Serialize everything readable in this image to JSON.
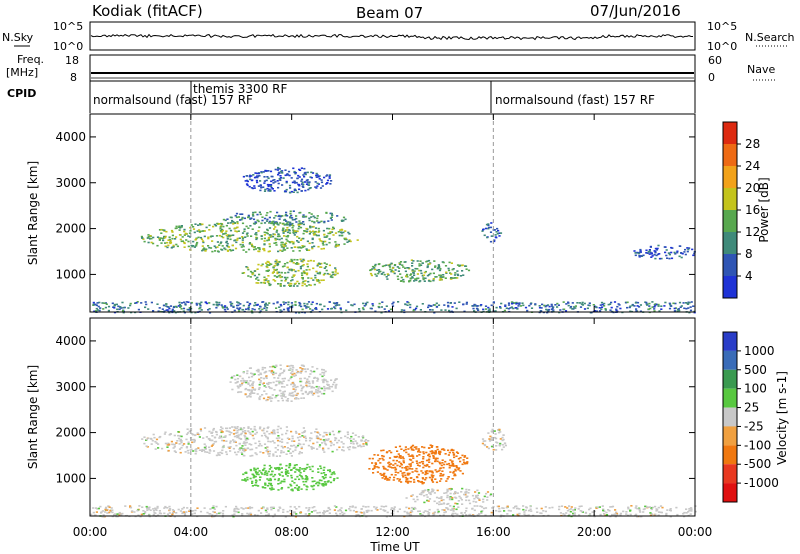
{
  "header": {
    "site": "Kodiak (fitACF)",
    "beam": "Beam 07",
    "date": "07/Jun/2016"
  },
  "status_panels": {
    "nsky_label": "N.Sky",
    "nsearch_label": "N.Search",
    "noise_ticks_left": [
      "10^5",
      "10^0"
    ],
    "noise_ticks_right": [
      "10^5",
      "10^0"
    ],
    "freq_label": "Freq.",
    "freq_unit": "[MHz]",
    "freq_ticks": [
      "18",
      "8"
    ],
    "nave_label": "Nave",
    "nave_ticks": [
      "60",
      "0"
    ],
    "cpid_label": "CPID"
  },
  "cpid_segments": [
    {
      "label": "normalsound (fast) 157 RF",
      "start_hour": 0,
      "end_hour": 4
    },
    {
      "label": "themis 3300 RF",
      "start_hour": 4,
      "end_hour": 16
    },
    {
      "label": "normalsound (fast) 157 RF",
      "start_hour": 16,
      "end_hour": 24
    }
  ],
  "chart_data": [
    {
      "type": "heatmap",
      "name": "power",
      "ylabel": "Slant Range [km]",
      "xlabel": "Time UT",
      "x_range_hours": [
        0,
        24
      ],
      "x_tick_labels": [
        "00:00",
        "04:00",
        "08:00",
        "12:00",
        "16:00",
        "20:00",
        "00:00"
      ],
      "ylim": [
        180,
        4500
      ],
      "y_ticks": [
        1000,
        2000,
        3000,
        4000
      ],
      "colorbar": {
        "label": "Power [dB]",
        "range": [
          0,
          32
        ],
        "ticks": [
          "4",
          "8",
          "12",
          "16",
          "20",
          "24",
          "28"
        ],
        "colors": [
          "#1f33d6",
          "#2f55b4",
          "#3f8a7a",
          "#58a84f",
          "#c4c41c",
          "#f2a21a",
          "#ee6a14",
          "#dd2a10"
        ]
      },
      "echo_regions": [
        {
          "t0": 2.0,
          "t1": 10.6,
          "r0": 1500,
          "r1": 2150,
          "level": 14
        },
        {
          "t0": 5.2,
          "t1": 10.2,
          "r0": 2100,
          "r1": 2400,
          "level": 10
        },
        {
          "t0": 6.0,
          "t1": 9.8,
          "r0": 750,
          "r1": 1350,
          "level": 15
        },
        {
          "t0": 6.0,
          "t1": 9.6,
          "r0": 2800,
          "r1": 3350,
          "level": 5
        },
        {
          "t0": 11.0,
          "t1": 15.0,
          "r0": 850,
          "r1": 1350,
          "level": 13
        },
        {
          "t0": 15.5,
          "t1": 16.3,
          "r0": 1700,
          "r1": 2150,
          "level": 6
        },
        {
          "t0": 21.5,
          "t1": 24.0,
          "r0": 1350,
          "r1": 1650,
          "level": 5
        },
        {
          "t0": 0.0,
          "t1": 24.0,
          "r0": 180,
          "r1": 420,
          "level": 8
        }
      ]
    },
    {
      "type": "heatmap",
      "name": "velocity",
      "ylabel": "Slant Range [km]",
      "xlabel": "Time UT",
      "x_range_hours": [
        0,
        24
      ],
      "x_tick_labels": [
        "00:00",
        "04:00",
        "08:00",
        "12:00",
        "16:00",
        "20:00",
        "00:00"
      ],
      "ylim": [
        180,
        4500
      ],
      "y_ticks": [
        1000,
        2000,
        3000,
        4000
      ],
      "colorbar": {
        "label": "Velocity [m s-1]",
        "ticks": [
          "1000",
          "500",
          "100",
          "25",
          "-25",
          "-100",
          "-500",
          "-1000"
        ],
        "colors": [
          "#2a3dc8",
          "#3a6cb8",
          "#3a9a50",
          "#58c840",
          "#c8c8c8",
          "#f0a040",
          "#f07810",
          "#e83820",
          "#e01010"
        ]
      },
      "echo_regions": [
        {
          "t0": 2.0,
          "t1": 11.0,
          "r0": 1500,
          "r1": 2150,
          "vel": 0
        },
        {
          "t0": 5.5,
          "t1": 9.8,
          "r0": 2700,
          "r1": 3500,
          "vel": 0
        },
        {
          "t0": 6.0,
          "t1": 9.8,
          "r0": 750,
          "r1": 1350,
          "vel": 60
        },
        {
          "t0": 11.0,
          "t1": 15.0,
          "r0": 900,
          "r1": 1750,
          "vel": -250
        },
        {
          "t0": 12.5,
          "t1": 16.0,
          "r0": 450,
          "r1": 800,
          "vel": 0
        },
        {
          "t0": 15.5,
          "t1": 16.5,
          "r0": 1600,
          "r1": 2100,
          "vel": 0
        },
        {
          "t0": 0.0,
          "t1": 24.0,
          "r0": 180,
          "r1": 420,
          "vel": 0
        }
      ]
    }
  ]
}
